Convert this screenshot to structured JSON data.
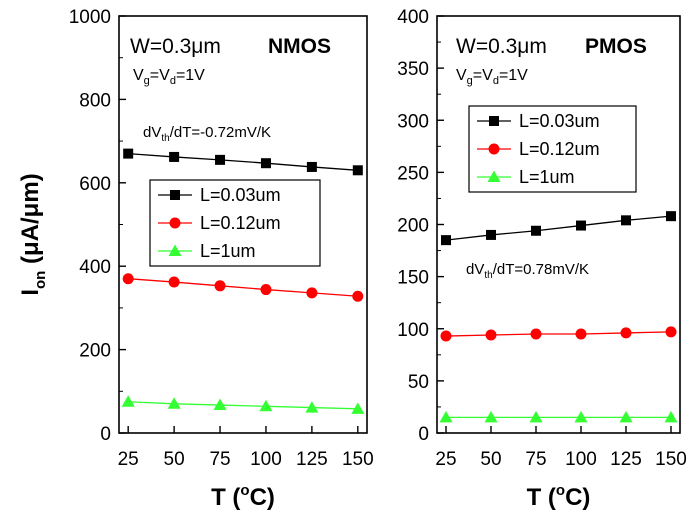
{
  "chart_data": [
    {
      "type": "line",
      "device": "NMOS",
      "annotation_w": "W=0.3μm",
      "annotation_device": "NMOS",
      "annotation_bias": {
        "main": "V",
        "sub1": "g",
        "mid": "=V",
        "sub2": "d",
        "tail": "=1V"
      },
      "annotation_slope": {
        "pre": "dV",
        "sub": "th",
        "post": "/dT=-0.72mV/K"
      },
      "ylabel": {
        "main": "I",
        "sub": "on",
        "rest": " (μA/μm)"
      },
      "xlabel": {
        "pre": "T (",
        "sup": "o",
        "post": "C)"
      },
      "xlim": [
        20,
        155
      ],
      "ylim": [
        0,
        1000
      ],
      "xticks": [
        25,
        50,
        75,
        100,
        125,
        150
      ],
      "yticks": [
        0,
        200,
        400,
        600,
        800,
        1000
      ],
      "legend_position": "center",
      "x": [
        25,
        50,
        75,
        100,
        125,
        150
      ],
      "series": [
        {
          "name": "L=0.03um",
          "color": "#000000",
          "marker": "square",
          "values": [
            670,
            662,
            655,
            647,
            638,
            630
          ]
        },
        {
          "name": "L=0.12um",
          "color": "#ff0000",
          "marker": "circle",
          "values": [
            370,
            362,
            353,
            344,
            336,
            328
          ]
        },
        {
          "name": "L=1um",
          "color": "#33ff33",
          "marker": "triangle",
          "values": [
            75,
            70,
            67,
            64,
            61,
            58
          ]
        }
      ]
    },
    {
      "type": "line",
      "device": "PMOS",
      "annotation_w": "W=0.3μm",
      "annotation_device": "PMOS",
      "annotation_bias": {
        "main": "V",
        "sub1": "g",
        "mid": "=V",
        "sub2": "d",
        "tail": "=1V"
      },
      "annotation_slope": {
        "pre": "dV",
        "sub": "th",
        "post": "/dT=0.78mV/K"
      },
      "xlabel": {
        "pre": "T (",
        "sup": "o",
        "post": "C)"
      },
      "xlim": [
        20,
        155
      ],
      "ylim": [
        0,
        400
      ],
      "xticks": [
        25,
        50,
        75,
        100,
        125,
        150
      ],
      "yticks": [
        0,
        50,
        100,
        150,
        200,
        250,
        300,
        350,
        400
      ],
      "legend_position": "upper-center",
      "x": [
        25,
        50,
        75,
        100,
        125,
        150
      ],
      "series": [
        {
          "name": "L=0.03um",
          "color": "#000000",
          "marker": "square",
          "values": [
            185,
            190,
            194,
            199,
            204,
            208
          ]
        },
        {
          "name": "L=0.12um",
          "color": "#ff0000",
          "marker": "circle",
          "values": [
            93,
            94,
            95,
            95,
            96,
            97
          ]
        },
        {
          "name": "L=1um",
          "color": "#33ff33",
          "marker": "triangle",
          "values": [
            15,
            15,
            15,
            15,
            15,
            15
          ]
        }
      ]
    }
  ]
}
